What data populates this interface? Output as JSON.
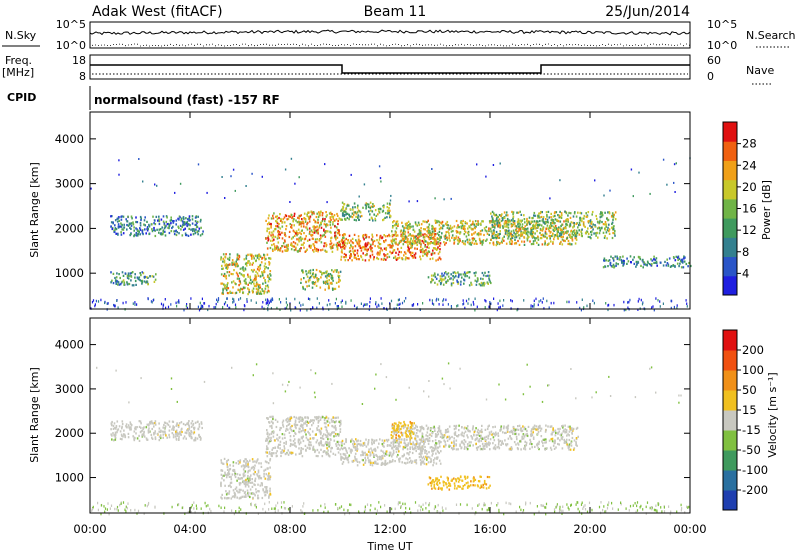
{
  "header": {
    "station": "Adak West (fitACF)",
    "beam": "Beam 11",
    "date": "25/Jun/2014"
  },
  "panel_labels": {
    "nsky": "N.Sky",
    "nsearch": "N.Search",
    "freq_line1": "Freq.",
    "freq_line2": "[MHz]",
    "nave": "Nave",
    "cpid": "CPID",
    "cpid_value": "normalsound (fast) -157 RF"
  },
  "noise_axis": {
    "left_ticks": [
      "10^5",
      "10^0"
    ],
    "right_ticks": [
      "10^5",
      "10^0"
    ]
  },
  "freq_axis": {
    "left_ticks": [
      "18",
      "8"
    ],
    "right_ticks": [
      "60",
      "0"
    ]
  },
  "chart_data": [
    {
      "type": "heatmap",
      "name": "power",
      "ylabel": "Slant Range [km]",
      "yticks": [
        1000,
        2000,
        3000,
        4000
      ],
      "ylim": [
        200,
        4600
      ],
      "xlim_hours": [
        0,
        24
      ],
      "colorbar": {
        "label": "Power [dB]",
        "ticks": [
          "4",
          "8",
          "12",
          "16",
          "20",
          "24",
          "28"
        ],
        "range": [
          0,
          32
        ],
        "colors": [
          "#1f1fe0",
          "#2a55c8",
          "#33808f",
          "#3f9a5e",
          "#70b447",
          "#c8c82a",
          "#f0a018",
          "#f06010",
          "#e01010"
        ]
      },
      "echo_bands": [
        {
          "t0": 0.8,
          "t1": 4.5,
          "r0": 1850,
          "r1": 2300,
          "level": 0.3
        },
        {
          "t0": 0.8,
          "t1": 2.6,
          "r0": 750,
          "r1": 1050,
          "level": 0.35
        },
        {
          "t0": 5.2,
          "t1": 7.2,
          "r0": 550,
          "r1": 1450,
          "level": 0.6
        },
        {
          "t0": 7.0,
          "t1": 10.0,
          "r0": 1500,
          "r1": 2400,
          "level": 0.7
        },
        {
          "t0": 8.4,
          "t1": 10.0,
          "r0": 650,
          "r1": 1100,
          "level": 0.55
        },
        {
          "t0": 10.0,
          "t1": 14.0,
          "r0": 1300,
          "r1": 1900,
          "level": 0.75
        },
        {
          "t0": 10.0,
          "t1": 12.0,
          "r0": 2200,
          "r1": 2600,
          "level": 0.5
        },
        {
          "t0": 12.0,
          "t1": 19.5,
          "r0": 1650,
          "r1": 2200,
          "level": 0.6
        },
        {
          "t0": 13.5,
          "t1": 16.0,
          "r0": 750,
          "r1": 1050,
          "level": 0.4
        },
        {
          "t0": 16.0,
          "t1": 21.0,
          "r0": 1800,
          "r1": 2400,
          "level": 0.5
        },
        {
          "t0": 20.5,
          "t1": 24.0,
          "r0": 1150,
          "r1": 1400,
          "level": 0.3
        }
      ]
    },
    {
      "type": "heatmap",
      "name": "velocity",
      "ylabel": "Slant Range [km]",
      "xlabel": "Time UT",
      "xticks": [
        "00:00",
        "04:00",
        "08:00",
        "12:00",
        "16:00",
        "20:00",
        "00:00"
      ],
      "yticks": [
        1000,
        2000,
        3000,
        4000
      ],
      "ylim": [
        200,
        4600
      ],
      "xlim_hours": [
        0,
        24
      ],
      "colorbar": {
        "label": "Velocity [m s⁻¹]",
        "ticks": [
          "200",
          "100",
          "50",
          "15",
          "-15",
          "-50",
          "-100",
          "-200"
        ],
        "colors": [
          "#1f3fb0",
          "#2a70a0",
          "#3f9a5e",
          "#80c040",
          "#c8c8c0",
          "#f0c020",
          "#f09018",
          "#f05010",
          "#e01010"
        ]
      },
      "echo_bands": [
        {
          "t0": 0.8,
          "t1": 4.5,
          "r0": 1850,
          "r1": 2300,
          "v": "gray"
        },
        {
          "t0": 5.2,
          "t1": 7.2,
          "r0": 550,
          "r1": 1450,
          "v": "gray"
        },
        {
          "t0": 7.0,
          "t1": 10.0,
          "r0": 1500,
          "r1": 2400,
          "v": "gray"
        },
        {
          "t0": 10.0,
          "t1": 14.0,
          "r0": 1300,
          "r1": 1900,
          "v": "gray"
        },
        {
          "t0": 12.0,
          "t1": 19.5,
          "r0": 1650,
          "r1": 2200,
          "v": "gray"
        },
        {
          "t0": 13.5,
          "t1": 16.0,
          "r0": 750,
          "r1": 1050,
          "v": "orange"
        },
        {
          "t0": 12.0,
          "t1": 13.0,
          "r0": 1900,
          "r1": 2300,
          "v": "orange"
        }
      ]
    }
  ]
}
